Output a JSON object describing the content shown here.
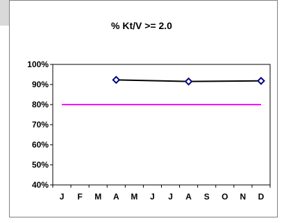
{
  "chart_data": {
    "type": "line",
    "title": "% Kt/V >= 2.0",
    "xlabel": "",
    "ylabel": "",
    "categories": [
      "J",
      "F",
      "M",
      "A",
      "M",
      "J",
      "J",
      "A",
      "S",
      "O",
      "N",
      "D"
    ],
    "y_ticks": [
      "100%",
      "90%",
      "80%",
      "70%",
      "60%",
      "50%",
      "40%"
    ],
    "ylim": [
      40,
      100
    ],
    "grid": false,
    "legend": "none",
    "series": [
      {
        "values": [
          null,
          null,
          null,
          92.3,
          null,
          null,
          null,
          91.5,
          null,
          null,
          null,
          91.8
        ],
        "color": "#000000",
        "marker_color": "#000080",
        "marker": "diamond",
        "connect_gaps": true
      },
      {
        "values": [
          80,
          80,
          80,
          80,
          80,
          80,
          80,
          80,
          80,
          80,
          80,
          80
        ],
        "color": "#ff00ff",
        "marker": "none"
      }
    ]
  }
}
